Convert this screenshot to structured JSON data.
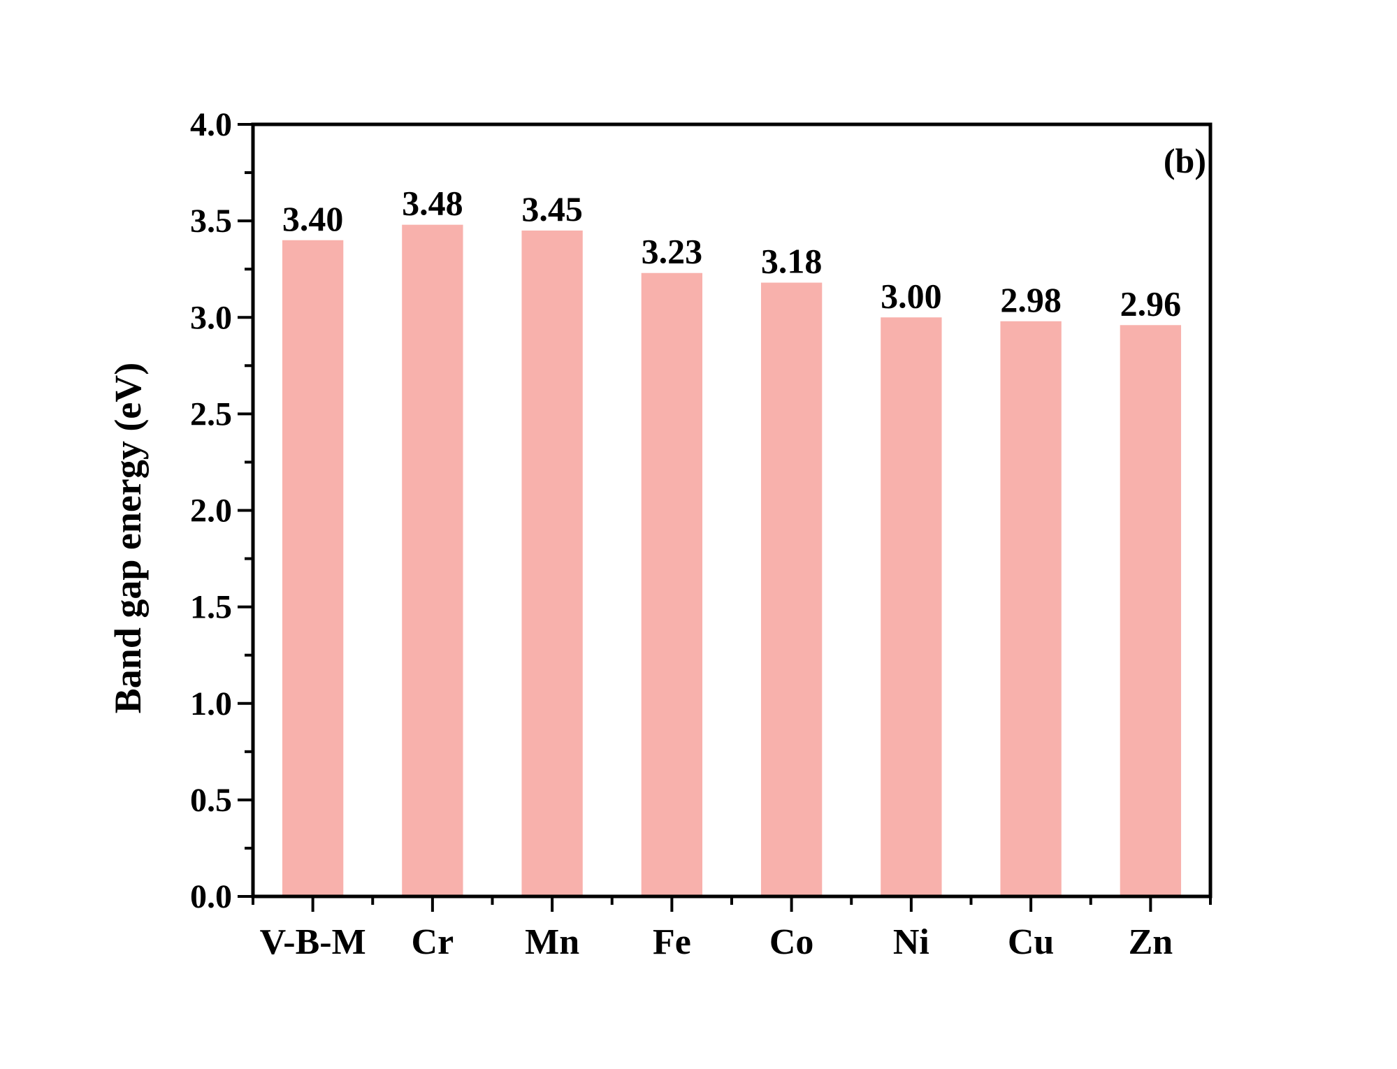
{
  "chart_data": {
    "type": "bar",
    "panel_label": "(b)",
    "categories": [
      "V-B-M",
      "Cr",
      "Mn",
      "Fe",
      "Co",
      "Ni",
      "Cu",
      "Zn"
    ],
    "values": [
      3.4,
      3.48,
      3.45,
      3.23,
      3.18,
      3.0,
      2.98,
      2.96
    ],
    "value_labels": [
      "3.40",
      "3.48",
      "3.45",
      "3.23",
      "3.18",
      "3.00",
      "2.98",
      "2.96"
    ],
    "xlabel": "",
    "ylabel": "Band gap energy (eV)",
    "ylim": [
      0,
      4.0
    ],
    "yticks": [
      0.0,
      0.5,
      1.0,
      1.5,
      2.0,
      2.5,
      3.0,
      3.5,
      4.0
    ],
    "ytick_labels": [
      "0.0",
      "0.5",
      "1.0",
      "1.5",
      "2.0",
      "2.5",
      "3.0",
      "3.5",
      "4.0"
    ],
    "grid": false,
    "legend": "none",
    "bar_color": "#f8b1ac",
    "axis_color": "#000000"
  }
}
